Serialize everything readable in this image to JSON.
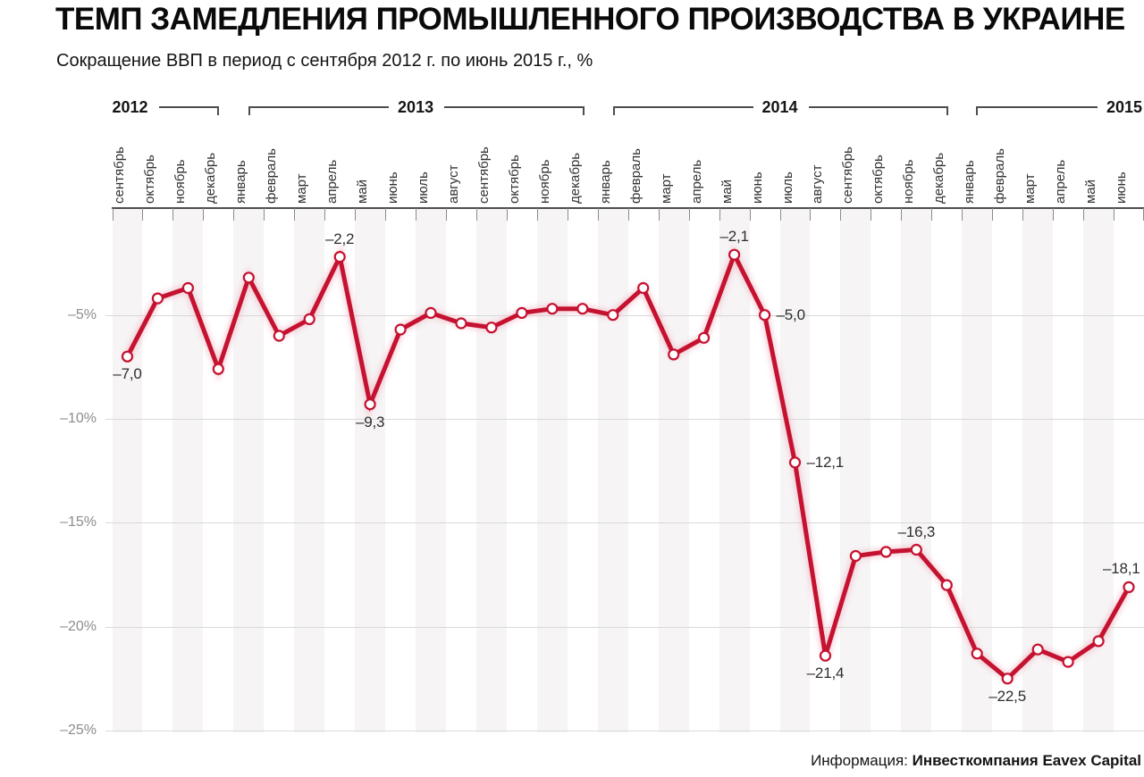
{
  "header": {
    "title": "ТЕМП ЗАМЕДЛЕНИЯ ПРОМЫШЛЕННОГО ПРОИЗВОДСТВА В УКРАИНЕ",
    "subtitle": "Сокращение ВВП в период с сентября 2012 г. по июнь 2015 г., %"
  },
  "footer": {
    "source_prefix": "Информация:",
    "source_name": "Инвесткомпания Eavex Capital"
  },
  "colors": {
    "line": "#c51230",
    "line_glow": "#f0b3c0",
    "point_fill": "#ffffff",
    "stripe": "#f6f4f5",
    "gridline": "#d9d9d9",
    "axis": "#4d4d4d",
    "tick": "#8c8c8c",
    "ylabel": "#8c8c8c",
    "bracket": "#4d4d4d",
    "point_label": "#2e2e2e"
  },
  "chart_data": {
    "type": "line",
    "title": "ТЕМП ЗАМЕДЛЕНИЯ ПРОМЫШЛЕННОГО ПРОИЗВОДСТВА В УКРАИНЕ",
    "subtitle": "Сокращение ВВП в период с сентября 2012 г. по июнь 2015 г., %",
    "ylabel": "%",
    "ylim": [
      -26.5,
      0
    ],
    "grid": "horizontal",
    "legend": "none",
    "y_ticks": [
      {
        "value": -5,
        "label": "–5%"
      },
      {
        "value": -10,
        "label": "–10%"
      },
      {
        "value": -15,
        "label": "–15%"
      },
      {
        "value": -20,
        "label": "–20%"
      },
      {
        "value": -25,
        "label": "–25%"
      }
    ],
    "year_groups": [
      {
        "label": "2012",
        "start_index": 0,
        "months": 4
      },
      {
        "label": "2013",
        "start_index": 4,
        "months": 12
      },
      {
        "label": "2014",
        "start_index": 16,
        "months": 12
      },
      {
        "label": "2015",
        "start_index": 28,
        "months": 6
      }
    ],
    "categories": [
      "сентябрь",
      "октябрь",
      "ноябрь",
      "декабрь",
      "январь",
      "февраль",
      "март",
      "апрель",
      "май",
      "июнь",
      "июль",
      "август",
      "сентябрь",
      "октябрь",
      "ноябрь",
      "декабрь",
      "январь",
      "февраль",
      "март",
      "апрель",
      "май",
      "июнь",
      "июль",
      "август",
      "сентябрь",
      "октябрь",
      "ноябрь",
      "декабрь",
      "январь",
      "февраль",
      "март",
      "апрель",
      "май",
      "июнь"
    ],
    "values": [
      -7.0,
      -4.2,
      -3.7,
      -7.6,
      -3.2,
      -6.0,
      -5.2,
      -2.2,
      -9.3,
      -5.7,
      -4.9,
      -5.4,
      -5.6,
      -4.9,
      -4.7,
      -4.7,
      -5.0,
      -3.7,
      -6.9,
      -6.1,
      -2.1,
      -5.0,
      -12.1,
      -21.4,
      -16.6,
      -16.4,
      -16.3,
      -18.0,
      -21.3,
      -22.5,
      -21.1,
      -21.7,
      -20.7,
      -18.1
    ],
    "annotations": [
      {
        "index": 0,
        "text": "–7,0",
        "position": "below"
      },
      {
        "index": 7,
        "text": "–2,2",
        "position": "above"
      },
      {
        "index": 8,
        "text": "–9,3",
        "position": "below"
      },
      {
        "index": 20,
        "text": "–2,1",
        "position": "above"
      },
      {
        "index": 21,
        "text": "–5,0",
        "position": "right"
      },
      {
        "index": 22,
        "text": "–12,1",
        "position": "right"
      },
      {
        "index": 23,
        "text": "–21,4",
        "position": "below"
      },
      {
        "index": 26,
        "text": "–16,3",
        "position": "above"
      },
      {
        "index": 29,
        "text": "–22,5",
        "position": "below"
      },
      {
        "index": 33,
        "text": "–18,1",
        "position": "above"
      }
    ]
  }
}
